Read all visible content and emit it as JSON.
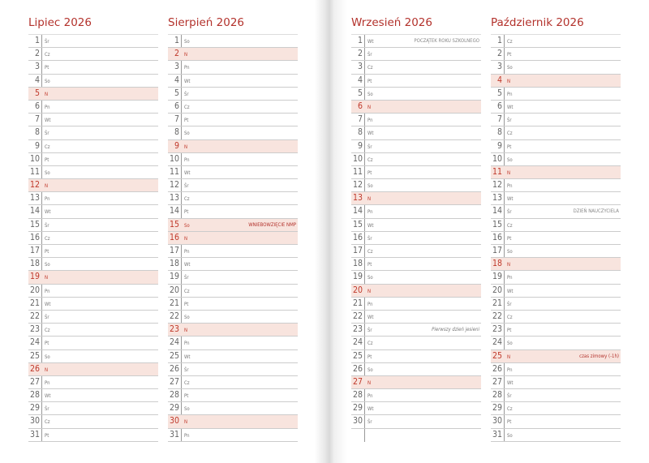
{
  "colors": {
    "title": "#b3322c",
    "highlight": "#f8e4de"
  },
  "months": [
    {
      "title": "Lipiec 2026",
      "days": [
        {
          "n": "1",
          "wd": "Śr"
        },
        {
          "n": "2",
          "wd": "Cz"
        },
        {
          "n": "3",
          "wd": "Pt"
        },
        {
          "n": "4",
          "wd": "So"
        },
        {
          "n": "5",
          "wd": "N",
          "hl": true
        },
        {
          "n": "6",
          "wd": "Pn"
        },
        {
          "n": "7",
          "wd": "Wt"
        },
        {
          "n": "8",
          "wd": "Śr"
        },
        {
          "n": "9",
          "wd": "Cz"
        },
        {
          "n": "10",
          "wd": "Pt"
        },
        {
          "n": "11",
          "wd": "So"
        },
        {
          "n": "12",
          "wd": "N",
          "hl": true
        },
        {
          "n": "13",
          "wd": "Pn"
        },
        {
          "n": "14",
          "wd": "Wt"
        },
        {
          "n": "15",
          "wd": "Śr"
        },
        {
          "n": "16",
          "wd": "Cz"
        },
        {
          "n": "17",
          "wd": "Pt"
        },
        {
          "n": "18",
          "wd": "So"
        },
        {
          "n": "19",
          "wd": "N",
          "hl": true
        },
        {
          "n": "20",
          "wd": "Pn"
        },
        {
          "n": "21",
          "wd": "Wt"
        },
        {
          "n": "22",
          "wd": "Śr"
        },
        {
          "n": "23",
          "wd": "Cz"
        },
        {
          "n": "24",
          "wd": "Pt"
        },
        {
          "n": "25",
          "wd": "So"
        },
        {
          "n": "26",
          "wd": "N",
          "hl": true
        },
        {
          "n": "27",
          "wd": "Pn"
        },
        {
          "n": "28",
          "wd": "Wt"
        },
        {
          "n": "29",
          "wd": "Śr"
        },
        {
          "n": "30",
          "wd": "Cz"
        },
        {
          "n": "31",
          "wd": "Pt"
        }
      ]
    },
    {
      "title": "Sierpień 2026",
      "days": [
        {
          "n": "1",
          "wd": "So"
        },
        {
          "n": "2",
          "wd": "N",
          "hl": true
        },
        {
          "n": "3",
          "wd": "Pn"
        },
        {
          "n": "4",
          "wd": "Wt"
        },
        {
          "n": "5",
          "wd": "Śr"
        },
        {
          "n": "6",
          "wd": "Cz"
        },
        {
          "n": "7",
          "wd": "Pt"
        },
        {
          "n": "8",
          "wd": "So"
        },
        {
          "n": "9",
          "wd": "N",
          "hl": true
        },
        {
          "n": "10",
          "wd": "Pn"
        },
        {
          "n": "11",
          "wd": "Wt"
        },
        {
          "n": "12",
          "wd": "Śr"
        },
        {
          "n": "13",
          "wd": "Cz"
        },
        {
          "n": "14",
          "wd": "Pt"
        },
        {
          "n": "15",
          "wd": "So",
          "hl": true,
          "note": "WNIEBOWZIĘCIE NMP",
          "note_style": "red"
        },
        {
          "n": "16",
          "wd": "N",
          "hl": true
        },
        {
          "n": "17",
          "wd": "Pn"
        },
        {
          "n": "18",
          "wd": "Wt"
        },
        {
          "n": "19",
          "wd": "Śr"
        },
        {
          "n": "20",
          "wd": "Cz"
        },
        {
          "n": "21",
          "wd": "Pt"
        },
        {
          "n": "22",
          "wd": "So"
        },
        {
          "n": "23",
          "wd": "N",
          "hl": true
        },
        {
          "n": "24",
          "wd": "Pn"
        },
        {
          "n": "25",
          "wd": "Wt"
        },
        {
          "n": "26",
          "wd": "Śr"
        },
        {
          "n": "27",
          "wd": "Cz"
        },
        {
          "n": "28",
          "wd": "Pt"
        },
        {
          "n": "29",
          "wd": "So"
        },
        {
          "n": "30",
          "wd": "N",
          "hl": true
        },
        {
          "n": "31",
          "wd": "Pn"
        }
      ]
    },
    {
      "title": "Wrzesień 2026",
      "days": [
        {
          "n": "1",
          "wd": "Wt",
          "note": "POCZĄTEK ROKU SZKOLNEGO",
          "note_style": "grey"
        },
        {
          "n": "2",
          "wd": "Śr"
        },
        {
          "n": "3",
          "wd": "Cz"
        },
        {
          "n": "4",
          "wd": "Pt"
        },
        {
          "n": "5",
          "wd": "So"
        },
        {
          "n": "6",
          "wd": "N",
          "hl": true
        },
        {
          "n": "7",
          "wd": "Pn"
        },
        {
          "n": "8",
          "wd": "Wt"
        },
        {
          "n": "9",
          "wd": "Śr"
        },
        {
          "n": "10",
          "wd": "Cz"
        },
        {
          "n": "11",
          "wd": "Pt"
        },
        {
          "n": "12",
          "wd": "So"
        },
        {
          "n": "13",
          "wd": "N",
          "hl": true
        },
        {
          "n": "14",
          "wd": "Pn"
        },
        {
          "n": "15",
          "wd": "Wt"
        },
        {
          "n": "16",
          "wd": "Śr"
        },
        {
          "n": "17",
          "wd": "Cz"
        },
        {
          "n": "18",
          "wd": "Pt"
        },
        {
          "n": "19",
          "wd": "So"
        },
        {
          "n": "20",
          "wd": "N",
          "hl": true
        },
        {
          "n": "21",
          "wd": "Pn"
        },
        {
          "n": "22",
          "wd": "Wt"
        },
        {
          "n": "23",
          "wd": "Śr",
          "note": "Pierwszy dzień jesieni",
          "note_style": "italic"
        },
        {
          "n": "24",
          "wd": "Cz"
        },
        {
          "n": "25",
          "wd": "Pt"
        },
        {
          "n": "26",
          "wd": "So"
        },
        {
          "n": "27",
          "wd": "N",
          "hl": true
        },
        {
          "n": "28",
          "wd": "Pn"
        },
        {
          "n": "29",
          "wd": "Wt"
        },
        {
          "n": "30",
          "wd": "Śr"
        }
      ]
    },
    {
      "title": "Październik 2026",
      "days": [
        {
          "n": "1",
          "wd": "Cz"
        },
        {
          "n": "2",
          "wd": "Pt"
        },
        {
          "n": "3",
          "wd": "So"
        },
        {
          "n": "4",
          "wd": "N",
          "hl": true
        },
        {
          "n": "5",
          "wd": "Pn"
        },
        {
          "n": "6",
          "wd": "Wt"
        },
        {
          "n": "7",
          "wd": "Śr"
        },
        {
          "n": "8",
          "wd": "Cz"
        },
        {
          "n": "9",
          "wd": "Pt"
        },
        {
          "n": "10",
          "wd": "So"
        },
        {
          "n": "11",
          "wd": "N",
          "hl": true
        },
        {
          "n": "12",
          "wd": "Pn"
        },
        {
          "n": "13",
          "wd": "Wt"
        },
        {
          "n": "14",
          "wd": "Śr",
          "note": "DZIEŃ NAUCZYCIELA",
          "note_style": "grey"
        },
        {
          "n": "15",
          "wd": "Cz"
        },
        {
          "n": "16",
          "wd": "Pt"
        },
        {
          "n": "17",
          "wd": "So"
        },
        {
          "n": "18",
          "wd": "N",
          "hl": true
        },
        {
          "n": "19",
          "wd": "Pn"
        },
        {
          "n": "20",
          "wd": "Wt"
        },
        {
          "n": "21",
          "wd": "Śr"
        },
        {
          "n": "22",
          "wd": "Cz"
        },
        {
          "n": "23",
          "wd": "Pt"
        },
        {
          "n": "24",
          "wd": "So"
        },
        {
          "n": "25",
          "wd": "N",
          "hl": true,
          "note": "czas zimowy (-1h)",
          "note_style": "red"
        },
        {
          "n": "26",
          "wd": "Pn"
        },
        {
          "n": "27",
          "wd": "Wt"
        },
        {
          "n": "28",
          "wd": "Śr"
        },
        {
          "n": "29",
          "wd": "Cz"
        },
        {
          "n": "30",
          "wd": "Pt"
        },
        {
          "n": "31",
          "wd": "So"
        }
      ]
    }
  ]
}
